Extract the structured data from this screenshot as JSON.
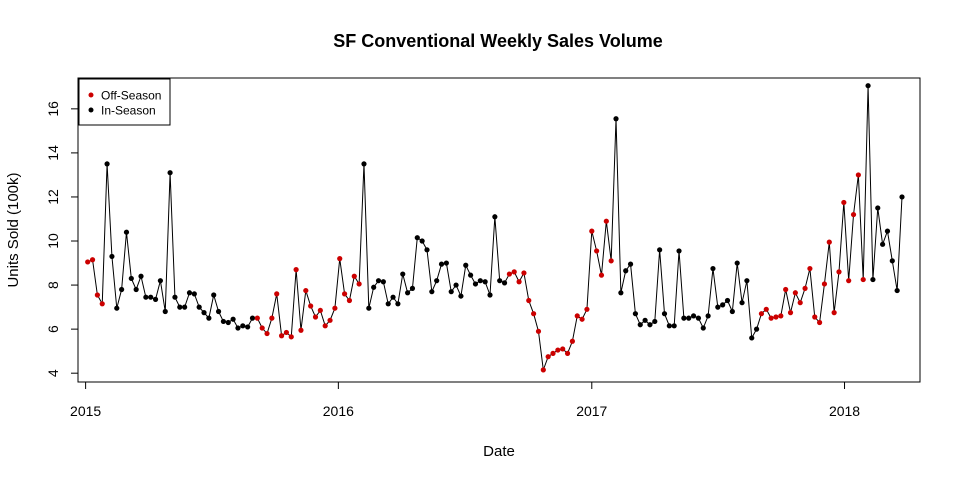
{
  "chart_data": {
    "type": "line",
    "title": "SF Conventional Weekly Sales Volume",
    "xlabel": "Date",
    "ylabel": "Units Sold (100k)",
    "x_range": [
      "2014-12-21",
      "2018-04-20"
    ],
    "ylim": [
      3.6,
      17.4
    ],
    "x_ticks": [
      "2015",
      "2016",
      "2017",
      "2018"
    ],
    "x_tick_dates": [
      "2015-01-01",
      "2016-01-01",
      "2017-01-01",
      "2018-01-01"
    ],
    "y_ticks": [
      4,
      6,
      8,
      10,
      12,
      14,
      16
    ],
    "y_tick_labels": [
      "4",
      "6",
      "8",
      "10",
      "12",
      "14",
      "16"
    ],
    "grid": false,
    "legend": {
      "position": "top-left",
      "entries": [
        {
          "label": "Off-Season",
          "color": "#cc0000"
        },
        {
          "label": "In-Season",
          "color": "#000000"
        }
      ]
    },
    "colors": {
      "off_season": "#cc0000",
      "in_season": "#000000",
      "line": "#000000"
    },
    "series": [
      {
        "name": "",
        "points": [
          [
            "2015-01-04",
            9.05,
            "Off-Season"
          ],
          [
            "2015-01-11",
            9.15,
            "Off-Season"
          ],
          [
            "2015-01-18",
            7.55,
            "Off-Season"
          ],
          [
            "2015-01-25",
            7.15,
            "Off-Season"
          ],
          [
            "2015-02-01",
            13.5,
            "In-Season"
          ],
          [
            "2015-02-08",
            9.3,
            "In-Season"
          ],
          [
            "2015-02-15",
            6.95,
            "In-Season"
          ],
          [
            "2015-02-22",
            7.8,
            "In-Season"
          ],
          [
            "2015-03-01",
            10.4,
            "In-Season"
          ],
          [
            "2015-03-08",
            8.3,
            "In-Season"
          ],
          [
            "2015-03-15",
            7.8,
            "In-Season"
          ],
          [
            "2015-03-22",
            8.4,
            "In-Season"
          ],
          [
            "2015-03-29",
            7.45,
            "In-Season"
          ],
          [
            "2015-04-05",
            7.45,
            "In-Season"
          ],
          [
            "2015-04-12",
            7.35,
            "In-Season"
          ],
          [
            "2015-04-19",
            8.2,
            "In-Season"
          ],
          [
            "2015-04-26",
            6.8,
            "In-Season"
          ],
          [
            "2015-05-03",
            13.1,
            "In-Season"
          ],
          [
            "2015-05-10",
            7.45,
            "In-Season"
          ],
          [
            "2015-05-17",
            7.0,
            "In-Season"
          ],
          [
            "2015-05-24",
            7.0,
            "In-Season"
          ],
          [
            "2015-05-31",
            7.65,
            "In-Season"
          ],
          [
            "2015-06-07",
            7.6,
            "In-Season"
          ],
          [
            "2015-06-14",
            7.0,
            "In-Season"
          ],
          [
            "2015-06-21",
            6.75,
            "In-Season"
          ],
          [
            "2015-06-28",
            6.5,
            "In-Season"
          ],
          [
            "2015-07-05",
            7.55,
            "In-Season"
          ],
          [
            "2015-07-12",
            6.8,
            "In-Season"
          ],
          [
            "2015-07-19",
            6.35,
            "In-Season"
          ],
          [
            "2015-07-26",
            6.3,
            "In-Season"
          ],
          [
            "2015-08-02",
            6.45,
            "In-Season"
          ],
          [
            "2015-08-09",
            6.05,
            "In-Season"
          ],
          [
            "2015-08-16",
            6.15,
            "In-Season"
          ],
          [
            "2015-08-23",
            6.1,
            "In-Season"
          ],
          [
            "2015-08-30",
            6.5,
            "In-Season"
          ],
          [
            "2015-09-06",
            6.5,
            "Off-Season"
          ],
          [
            "2015-09-13",
            6.05,
            "Off-Season"
          ],
          [
            "2015-09-20",
            5.8,
            "Off-Season"
          ],
          [
            "2015-09-27",
            6.5,
            "Off-Season"
          ],
          [
            "2015-10-04",
            7.6,
            "Off-Season"
          ],
          [
            "2015-10-11",
            5.7,
            "Off-Season"
          ],
          [
            "2015-10-18",
            5.85,
            "Off-Season"
          ],
          [
            "2015-10-25",
            5.65,
            "Off-Season"
          ],
          [
            "2015-11-01",
            8.7,
            "Off-Season"
          ],
          [
            "2015-11-08",
            5.95,
            "Off-Season"
          ],
          [
            "2015-11-15",
            7.75,
            "Off-Season"
          ],
          [
            "2015-11-22",
            7.05,
            "Off-Season"
          ],
          [
            "2015-11-29",
            6.55,
            "Off-Season"
          ],
          [
            "2015-12-06",
            6.85,
            "Off-Season"
          ],
          [
            "2015-12-13",
            6.15,
            "Off-Season"
          ],
          [
            "2015-12-20",
            6.4,
            "Off-Season"
          ],
          [
            "2015-12-27",
            6.95,
            "Off-Season"
          ],
          [
            "2016-01-03",
            9.2,
            "Off-Season"
          ],
          [
            "2016-01-10",
            7.6,
            "Off-Season"
          ],
          [
            "2016-01-17",
            7.3,
            "Off-Season"
          ],
          [
            "2016-01-24",
            8.4,
            "Off-Season"
          ],
          [
            "2016-01-31",
            8.05,
            "Off-Season"
          ],
          [
            "2016-02-07",
            13.5,
            "In-Season"
          ],
          [
            "2016-02-14",
            6.95,
            "In-Season"
          ],
          [
            "2016-02-21",
            7.9,
            "In-Season"
          ],
          [
            "2016-02-28",
            8.2,
            "In-Season"
          ],
          [
            "2016-03-06",
            8.15,
            "In-Season"
          ],
          [
            "2016-03-13",
            7.15,
            "In-Season"
          ],
          [
            "2016-03-20",
            7.45,
            "In-Season"
          ],
          [
            "2016-03-27",
            7.15,
            "In-Season"
          ],
          [
            "2016-04-03",
            8.5,
            "In-Season"
          ],
          [
            "2016-04-10",
            7.65,
            "In-Season"
          ],
          [
            "2016-04-17",
            7.85,
            "In-Season"
          ],
          [
            "2016-04-24",
            10.15,
            "In-Season"
          ],
          [
            "2016-05-01",
            10.0,
            "In-Season"
          ],
          [
            "2016-05-08",
            9.6,
            "In-Season"
          ],
          [
            "2016-05-15",
            7.7,
            "In-Season"
          ],
          [
            "2016-05-22",
            8.2,
            "In-Season"
          ],
          [
            "2016-05-29",
            8.95,
            "In-Season"
          ],
          [
            "2016-06-05",
            9.0,
            "In-Season"
          ],
          [
            "2016-06-12",
            7.7,
            "In-Season"
          ],
          [
            "2016-06-19",
            8.0,
            "In-Season"
          ],
          [
            "2016-06-26",
            7.5,
            "In-Season"
          ],
          [
            "2016-07-03",
            8.9,
            "In-Season"
          ],
          [
            "2016-07-10",
            8.45,
            "In-Season"
          ],
          [
            "2016-07-17",
            8.05,
            "In-Season"
          ],
          [
            "2016-07-24",
            8.2,
            "In-Season"
          ],
          [
            "2016-07-31",
            8.15,
            "In-Season"
          ],
          [
            "2016-08-07",
            7.55,
            "In-Season"
          ],
          [
            "2016-08-14",
            11.1,
            "In-Season"
          ],
          [
            "2016-08-21",
            8.2,
            "In-Season"
          ],
          [
            "2016-08-28",
            8.1,
            "In-Season"
          ],
          [
            "2016-09-04",
            8.5,
            "Off-Season"
          ],
          [
            "2016-09-11",
            8.6,
            "Off-Season"
          ],
          [
            "2016-09-18",
            8.15,
            "Off-Season"
          ],
          [
            "2016-09-25",
            8.55,
            "Off-Season"
          ],
          [
            "2016-10-02",
            7.3,
            "Off-Season"
          ],
          [
            "2016-10-09",
            6.7,
            "Off-Season"
          ],
          [
            "2016-10-16",
            5.9,
            "Off-Season"
          ],
          [
            "2016-10-23",
            4.15,
            "Off-Season"
          ],
          [
            "2016-10-30",
            4.75,
            "Off-Season"
          ],
          [
            "2016-11-06",
            4.9,
            "Off-Season"
          ],
          [
            "2016-11-13",
            5.05,
            "Off-Season"
          ],
          [
            "2016-11-20",
            5.1,
            "Off-Season"
          ],
          [
            "2016-11-27",
            4.9,
            "Off-Season"
          ],
          [
            "2016-12-04",
            5.45,
            "Off-Season"
          ],
          [
            "2016-12-11",
            6.6,
            "Off-Season"
          ],
          [
            "2016-12-18",
            6.45,
            "Off-Season"
          ],
          [
            "2016-12-25",
            6.9,
            "Off-Season"
          ],
          [
            "2017-01-01",
            10.45,
            "Off-Season"
          ],
          [
            "2017-01-08",
            9.55,
            "Off-Season"
          ],
          [
            "2017-01-15",
            8.45,
            "Off-Season"
          ],
          [
            "2017-01-22",
            10.9,
            "Off-Season"
          ],
          [
            "2017-01-29",
            9.1,
            "Off-Season"
          ],
          [
            "2017-02-05",
            15.55,
            "In-Season"
          ],
          [
            "2017-02-12",
            7.65,
            "In-Season"
          ],
          [
            "2017-02-19",
            8.65,
            "In-Season"
          ],
          [
            "2017-02-26",
            8.95,
            "In-Season"
          ],
          [
            "2017-03-05",
            6.7,
            "In-Season"
          ],
          [
            "2017-03-12",
            6.2,
            "In-Season"
          ],
          [
            "2017-03-19",
            6.4,
            "In-Season"
          ],
          [
            "2017-03-26",
            6.2,
            "In-Season"
          ],
          [
            "2017-04-02",
            6.35,
            "In-Season"
          ],
          [
            "2017-04-09",
            9.6,
            "In-Season"
          ],
          [
            "2017-04-16",
            6.7,
            "In-Season"
          ],
          [
            "2017-04-23",
            6.15,
            "In-Season"
          ],
          [
            "2017-04-30",
            6.15,
            "In-Season"
          ],
          [
            "2017-05-07",
            9.55,
            "In-Season"
          ],
          [
            "2017-05-14",
            6.5,
            "In-Season"
          ],
          [
            "2017-05-21",
            6.5,
            "In-Season"
          ],
          [
            "2017-05-28",
            6.6,
            "In-Season"
          ],
          [
            "2017-06-04",
            6.5,
            "In-Season"
          ],
          [
            "2017-06-11",
            6.05,
            "In-Season"
          ],
          [
            "2017-06-18",
            6.6,
            "In-Season"
          ],
          [
            "2017-06-25",
            8.75,
            "In-Season"
          ],
          [
            "2017-07-02",
            7.0,
            "In-Season"
          ],
          [
            "2017-07-09",
            7.1,
            "In-Season"
          ],
          [
            "2017-07-16",
            7.3,
            "In-Season"
          ],
          [
            "2017-07-23",
            6.8,
            "In-Season"
          ],
          [
            "2017-07-30",
            9.0,
            "In-Season"
          ],
          [
            "2017-08-06",
            7.2,
            "In-Season"
          ],
          [
            "2017-08-13",
            8.2,
            "In-Season"
          ],
          [
            "2017-08-20",
            5.6,
            "In-Season"
          ],
          [
            "2017-08-27",
            6.0,
            "In-Season"
          ],
          [
            "2017-09-03",
            6.7,
            "Off-Season"
          ],
          [
            "2017-09-10",
            6.9,
            "Off-Season"
          ],
          [
            "2017-09-17",
            6.5,
            "Off-Season"
          ],
          [
            "2017-09-24",
            6.55,
            "Off-Season"
          ],
          [
            "2017-10-01",
            6.6,
            "Off-Season"
          ],
          [
            "2017-10-08",
            7.8,
            "Off-Season"
          ],
          [
            "2017-10-15",
            6.75,
            "Off-Season"
          ],
          [
            "2017-10-22",
            7.65,
            "Off-Season"
          ],
          [
            "2017-10-29",
            7.2,
            "Off-Season"
          ],
          [
            "2017-11-05",
            7.85,
            "Off-Season"
          ],
          [
            "2017-11-12",
            8.75,
            "Off-Season"
          ],
          [
            "2017-11-19",
            6.55,
            "Off-Season"
          ],
          [
            "2017-11-26",
            6.3,
            "Off-Season"
          ],
          [
            "2017-12-03",
            8.05,
            "Off-Season"
          ],
          [
            "2017-12-10",
            9.95,
            "Off-Season"
          ],
          [
            "2017-12-17",
            6.75,
            "Off-Season"
          ],
          [
            "2017-12-24",
            8.6,
            "Off-Season"
          ],
          [
            "2017-12-31",
            11.75,
            "Off-Season"
          ],
          [
            "2018-01-07",
            8.2,
            "Off-Season"
          ],
          [
            "2018-01-14",
            11.2,
            "Off-Season"
          ],
          [
            "2018-01-21",
            13.0,
            "Off-Season"
          ],
          [
            "2018-01-28",
            8.25,
            "Off-Season"
          ],
          [
            "2018-02-04",
            17.05,
            "In-Season"
          ],
          [
            "2018-02-11",
            8.25,
            "In-Season"
          ],
          [
            "2018-02-18",
            11.5,
            "In-Season"
          ],
          [
            "2018-02-25",
            9.85,
            "In-Season"
          ],
          [
            "2018-03-04",
            10.45,
            "In-Season"
          ],
          [
            "2018-03-11",
            9.1,
            "In-Season"
          ],
          [
            "2018-03-18",
            7.75,
            "In-Season"
          ],
          [
            "2018-03-25",
            12.0,
            "In-Season"
          ]
        ]
      }
    ]
  }
}
